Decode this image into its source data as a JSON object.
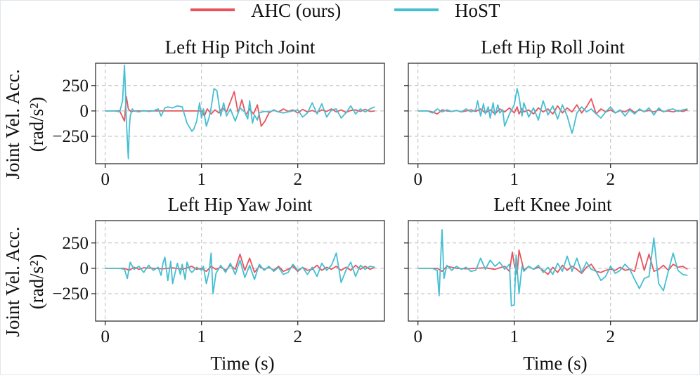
{
  "legend": {
    "placement": "top-center",
    "entries": [
      {
        "label": "AHC (ours)",
        "color": "#e8545e"
      },
      {
        "label": "HoST",
        "color": "#45bfd2"
      }
    ]
  },
  "ylabel_line1": "Joint Vel. Acc.",
  "ylabel_line2": "(rad/s²)",
  "xlabel": "Time (s)",
  "chart_data": [
    {
      "type": "line",
      "title": "Left Hip Pitch Joint",
      "xlabel": "",
      "ylabel": "Joint Vel. Acc. (rad/s²)",
      "xlim": [
        -0.1,
        2.9
      ],
      "ylim": [
        -520,
        470
      ],
      "xticks": [
        0,
        1,
        2
      ],
      "yticks": [
        -250,
        0,
        250
      ],
      "xtick_labels": [
        "0",
        "1",
        "2"
      ],
      "ytick_labels": [
        "−250",
        "0",
        "250"
      ],
      "grid": true,
      "series": [
        {
          "name": "AHC (ours)",
          "color": "#e8545e",
          "x": [
            0,
            0.15,
            0.18,
            0.2,
            0.22,
            0.24,
            0.27,
            0.3,
            1.0,
            1.03,
            1.06,
            1.1,
            1.14,
            1.18,
            1.22,
            1.26,
            1.3,
            1.34,
            1.38,
            1.42,
            1.46,
            1.5,
            1.54,
            1.58,
            1.62,
            1.66,
            1.7,
            1.75,
            1.8,
            1.85,
            1.9,
            1.95,
            2.0,
            2.05,
            2.1,
            2.15,
            2.2,
            2.25,
            2.3,
            2.35,
            2.4,
            2.45,
            2.5,
            2.55,
            2.6,
            2.65,
            2.7,
            2.75,
            2.8
          ],
          "y": [
            0,
            0,
            -60,
            -100,
            140,
            20,
            -10,
            0,
            0,
            -50,
            20,
            -30,
            10,
            -20,
            30,
            -10,
            90,
            190,
            -20,
            110,
            -40,
            20,
            -30,
            60,
            -150,
            -100,
            -20,
            10,
            -10,
            20,
            -5,
            10,
            -20,
            15,
            -10,
            5,
            -15,
            10,
            -5,
            20,
            -10,
            10,
            -15,
            5,
            10,
            -5,
            15,
            -5,
            0
          ]
        },
        {
          "name": "HoST",
          "color": "#45bfd2",
          "x": [
            0,
            0.1,
            0.15,
            0.18,
            0.2,
            0.21,
            0.22,
            0.24,
            0.25,
            0.26,
            0.28,
            0.3,
            0.35,
            0.4,
            0.45,
            0.5,
            0.55,
            0.58,
            0.6,
            0.62,
            0.65,
            0.7,
            0.75,
            0.8,
            0.85,
            0.9,
            0.92,
            0.95,
            0.98,
            1.0,
            1.02,
            1.05,
            1.08,
            1.1,
            1.13,
            1.16,
            1.2,
            1.23,
            1.26,
            1.3,
            1.35,
            1.4,
            1.45,
            1.48,
            1.5,
            1.53,
            1.55,
            1.58,
            1.6,
            1.65,
            1.7,
            1.75,
            1.8,
            1.85,
            1.9,
            1.95,
            2.0,
            2.05,
            2.1,
            2.15,
            2.2,
            2.25,
            2.3,
            2.35,
            2.4,
            2.45,
            2.5,
            2.55,
            2.6,
            2.65,
            2.7,
            2.75,
            2.8
          ],
          "y": [
            0,
            0,
            -10,
            100,
            450,
            200,
            -100,
            -470,
            -180,
            -50,
            20,
            0,
            -10,
            5,
            -5,
            0,
            20,
            -50,
            -10,
            30,
            40,
            30,
            50,
            40,
            -120,
            -200,
            -180,
            -100,
            80,
            -70,
            20,
            -150,
            -60,
            30,
            220,
            200,
            -50,
            80,
            -50,
            20,
            -100,
            30,
            -10,
            -80,
            100,
            -120,
            -40,
            -90,
            -20,
            -5,
            -10,
            5,
            -10,
            -20,
            -10,
            0,
            10,
            -60,
            -20,
            80,
            -30,
            70,
            -60,
            10,
            20,
            -70,
            -20,
            50,
            -30,
            20,
            -10,
            20,
            40
          ]
        }
      ]
    },
    {
      "type": "line",
      "title": "Left Hip Roll Joint",
      "xlabel": "",
      "ylabel": "",
      "xlim": [
        -0.1,
        2.9
      ],
      "ylim": [
        -520,
        470
      ],
      "xticks": [
        0,
        1,
        2
      ],
      "yticks": [
        -250,
        0,
        250
      ],
      "xtick_labels": [
        "0",
        "1",
        "2"
      ],
      "ytick_labels": [
        "",
        "",
        ""
      ],
      "grid": true,
      "series": [
        {
          "name": "AHC (ours)",
          "color": "#e8545e",
          "x": [
            0,
            0.1,
            0.15,
            0.2,
            0.25,
            0.3,
            0.35,
            0.4,
            0.45,
            0.5,
            0.55,
            0.6,
            0.65,
            0.7,
            0.75,
            0.8,
            0.85,
            0.9,
            0.95,
            1.0,
            1.03,
            1.05,
            1.08,
            1.1,
            1.15,
            1.2,
            1.25,
            1.3,
            1.35,
            1.4,
            1.45,
            1.5,
            1.55,
            1.6,
            1.65,
            1.7,
            1.75,
            1.8,
            1.85,
            1.9,
            1.95,
            2.0,
            2.05,
            2.1,
            2.15,
            2.2,
            2.25,
            2.3,
            2.35,
            2.4,
            2.45,
            2.5,
            2.55,
            2.6,
            2.65,
            2.7,
            2.75,
            2.8
          ],
          "y": [
            0,
            0,
            -10,
            -30,
            10,
            0,
            -5,
            5,
            -10,
            0,
            10,
            -5,
            20,
            -20,
            10,
            -30,
            20,
            -10,
            30,
            -20,
            40,
            -30,
            20,
            -10,
            10,
            -30,
            30,
            -10,
            20,
            -30,
            50,
            -20,
            30,
            -10,
            60,
            -20,
            40,
            120,
            -30,
            20,
            -10,
            10,
            -20,
            5,
            -10,
            20,
            -15,
            10,
            -5,
            5,
            -10,
            10,
            -5,
            0,
            -10,
            5,
            -5,
            10
          ]
        },
        {
          "name": "HoST",
          "color": "#45bfd2",
          "x": [
            0,
            0.1,
            0.15,
            0.2,
            0.25,
            0.3,
            0.35,
            0.4,
            0.45,
            0.5,
            0.55,
            0.6,
            0.62,
            0.65,
            0.68,
            0.7,
            0.73,
            0.75,
            0.78,
            0.8,
            0.83,
            0.85,
            0.88,
            0.9,
            0.95,
            1.0,
            1.03,
            1.05,
            1.08,
            1.1,
            1.15,
            1.2,
            1.25,
            1.3,
            1.35,
            1.4,
            1.45,
            1.5,
            1.55,
            1.6,
            1.62,
            1.65,
            1.7,
            1.75,
            1.8,
            1.85,
            1.9,
            1.95,
            2.0,
            2.05,
            2.1,
            2.15,
            2.2,
            2.25,
            2.3,
            2.35,
            2.4,
            2.45,
            2.5,
            2.55,
            2.6,
            2.65,
            2.7,
            2.75,
            2.8
          ],
          "y": [
            0,
            0,
            -20,
            20,
            -10,
            10,
            -5,
            5,
            -10,
            20,
            -10,
            10,
            100,
            -50,
            70,
            -30,
            40,
            -70,
            80,
            -40,
            60,
            -20,
            10,
            -150,
            -30,
            60,
            220,
            140,
            -50,
            80,
            -60,
            30,
            -90,
            100,
            -40,
            50,
            -80,
            60,
            -50,
            -220,
            -150,
            -20,
            40,
            -10,
            20,
            -30,
            -70,
            -10,
            40,
            -20,
            10,
            -50,
            10,
            -30,
            20,
            -10,
            30,
            -40,
            30,
            -10,
            10,
            20,
            -5,
            10,
            20
          ]
        }
      ]
    },
    {
      "type": "line",
      "title": "Left Hip Yaw Joint",
      "xlabel": "Time (s)",
      "ylabel": "Joint Vel. Acc. (rad/s²)",
      "xlim": [
        -0.1,
        2.9
      ],
      "ylim": [
        -520,
        470
      ],
      "xticks": [
        0,
        1,
        2
      ],
      "yticks": [
        -250,
        0,
        250
      ],
      "xtick_labels": [
        "0",
        "1",
        "2"
      ],
      "ytick_labels": [
        "−250",
        "0",
        "250"
      ],
      "grid": true,
      "series": [
        {
          "name": "AHC (ours)",
          "color": "#e8545e",
          "x": [
            0,
            0.2,
            0.25,
            0.3,
            0.35,
            0.4,
            0.5,
            0.6,
            0.7,
            0.8,
            0.9,
            0.95,
            1.0,
            1.05,
            1.1,
            1.15,
            1.2,
            1.25,
            1.3,
            1.35,
            1.4,
            1.45,
            1.5,
            1.55,
            1.6,
            1.65,
            1.7,
            1.75,
            1.8,
            1.85,
            1.9,
            1.95,
            2.0,
            2.05,
            2.1,
            2.15,
            2.2,
            2.25,
            2.3,
            2.35,
            2.4,
            2.45,
            2.5,
            2.55,
            2.6,
            2.65,
            2.7,
            2.75,
            2.8
          ],
          "y": [
            0,
            0,
            -20,
            10,
            -10,
            5,
            0,
            -5,
            5,
            -10,
            20,
            -10,
            0,
            -30,
            20,
            -10,
            10,
            -20,
            30,
            -10,
            140,
            -20,
            100,
            -40,
            20,
            -10,
            10,
            -20,
            20,
            -30,
            -10,
            20,
            -30,
            10,
            -20,
            -10,
            30,
            -20,
            10,
            -10,
            20,
            -20,
            10,
            -20,
            30,
            -10,
            20,
            -10,
            10
          ]
        },
        {
          "name": "HoST",
          "color": "#45bfd2",
          "x": [
            0,
            0.15,
            0.2,
            0.23,
            0.26,
            0.3,
            0.35,
            0.4,
            0.45,
            0.5,
            0.55,
            0.58,
            0.6,
            0.62,
            0.65,
            0.68,
            0.7,
            0.73,
            0.75,
            0.78,
            0.8,
            0.83,
            0.85,
            0.88,
            0.9,
            0.95,
            1.0,
            1.02,
            1.05,
            1.08,
            1.1,
            1.12,
            1.15,
            1.2,
            1.25,
            1.3,
            1.35,
            1.4,
            1.45,
            1.5,
            1.55,
            1.6,
            1.65,
            1.7,
            1.75,
            1.8,
            1.85,
            1.9,
            1.95,
            2.0,
            2.05,
            2.1,
            2.15,
            2.2,
            2.25,
            2.3,
            2.35,
            2.4,
            2.45,
            2.5,
            2.55,
            2.6,
            2.65,
            2.7,
            2.75,
            2.8
          ],
          "y": [
            0,
            0,
            -10,
            -100,
            60,
            -10,
            20,
            -40,
            30,
            -20,
            10,
            -70,
            50,
            110,
            -120,
            70,
            -150,
            -30,
            50,
            -60,
            40,
            -110,
            60,
            -20,
            -40,
            10,
            -20,
            20,
            -150,
            -30,
            150,
            -250,
            -50,
            30,
            -40,
            50,
            -60,
            80,
            -90,
            30,
            -110,
            40,
            -20,
            20,
            -30,
            10,
            -60,
            -40,
            40,
            -20,
            10,
            -60,
            10,
            -80,
            50,
            -20,
            30,
            150,
            -140,
            -20,
            60,
            -80,
            30,
            -10,
            20,
            10
          ]
        }
      ]
    },
    {
      "type": "line",
      "title": "Left Knee Joint",
      "xlabel": "Time (s)",
      "ylabel": "",
      "xlim": [
        -0.1,
        2.9
      ],
      "ylim": [
        -520,
        470
      ],
      "xticks": [
        0,
        1,
        2
      ],
      "yticks": [
        -250,
        0,
        250
      ],
      "xtick_labels": [
        "0",
        "1",
        "2"
      ],
      "ytick_labels": [
        "",
        "",
        ""
      ],
      "grid": true,
      "series": [
        {
          "name": "AHC (ours)",
          "color": "#e8545e",
          "x": [
            0,
            0.2,
            0.25,
            0.3,
            0.4,
            0.5,
            0.6,
            0.7,
            0.8,
            0.9,
            0.95,
            0.98,
            1.0,
            1.03,
            1.05,
            1.1,
            1.15,
            1.2,
            1.25,
            1.3,
            1.35,
            1.4,
            1.45,
            1.5,
            1.55,
            1.6,
            1.65,
            1.7,
            1.75,
            1.8,
            1.85,
            1.9,
            1.95,
            2.0,
            2.05,
            2.1,
            2.15,
            2.2,
            2.25,
            2.3,
            2.35,
            2.4,
            2.45,
            2.5,
            2.55,
            2.6,
            2.65,
            2.7,
            2.75,
            2.8
          ],
          "y": [
            0,
            0,
            -30,
            20,
            0,
            -5,
            0,
            5,
            -10,
            20,
            -30,
            160,
            40,
            -60,
            180,
            -20,
            20,
            -10,
            10,
            -20,
            -60,
            10,
            -40,
            30,
            -20,
            20,
            -10,
            -50,
            10,
            40,
            -30,
            -40,
            -20,
            -10,
            -20,
            10,
            -20,
            -10,
            -30,
            160,
            -20,
            140,
            -30,
            -10,
            30,
            -20,
            40,
            10,
            20,
            -10
          ]
        },
        {
          "name": "HoST",
          "color": "#45bfd2",
          "x": [
            0,
            0.15,
            0.2,
            0.22,
            0.24,
            0.25,
            0.27,
            0.3,
            0.35,
            0.4,
            0.45,
            0.5,
            0.55,
            0.6,
            0.65,
            0.7,
            0.75,
            0.8,
            0.85,
            0.9,
            0.95,
            0.97,
            1.0,
            1.02,
            1.05,
            1.08,
            1.1,
            1.15,
            1.2,
            1.25,
            1.3,
            1.35,
            1.4,
            1.45,
            1.5,
            1.55,
            1.6,
            1.65,
            1.7,
            1.75,
            1.8,
            1.85,
            1.9,
            1.95,
            2.0,
            2.05,
            2.1,
            2.15,
            2.2,
            2.25,
            2.3,
            2.35,
            2.4,
            2.45,
            2.5,
            2.55,
            2.6,
            2.65,
            2.7,
            2.75,
            2.8
          ],
          "y": [
            0,
            0,
            -20,
            -270,
            180,
            380,
            -100,
            30,
            -20,
            20,
            -10,
            10,
            -30,
            -20,
            100,
            -10,
            80,
            20,
            60,
            -10,
            40,
            -370,
            -360,
            130,
            -250,
            20,
            -30,
            20,
            -10,
            30,
            -40,
            10,
            -60,
            50,
            -30,
            120,
            -30,
            100,
            -40,
            60,
            -10,
            -30,
            -120,
            -80,
            20,
            -50,
            -20,
            40,
            -10,
            -110,
            -200,
            -100,
            -80,
            300,
            -150,
            -220,
            -30,
            150,
            -20,
            -60,
            -70
          ]
        }
      ]
    }
  ]
}
